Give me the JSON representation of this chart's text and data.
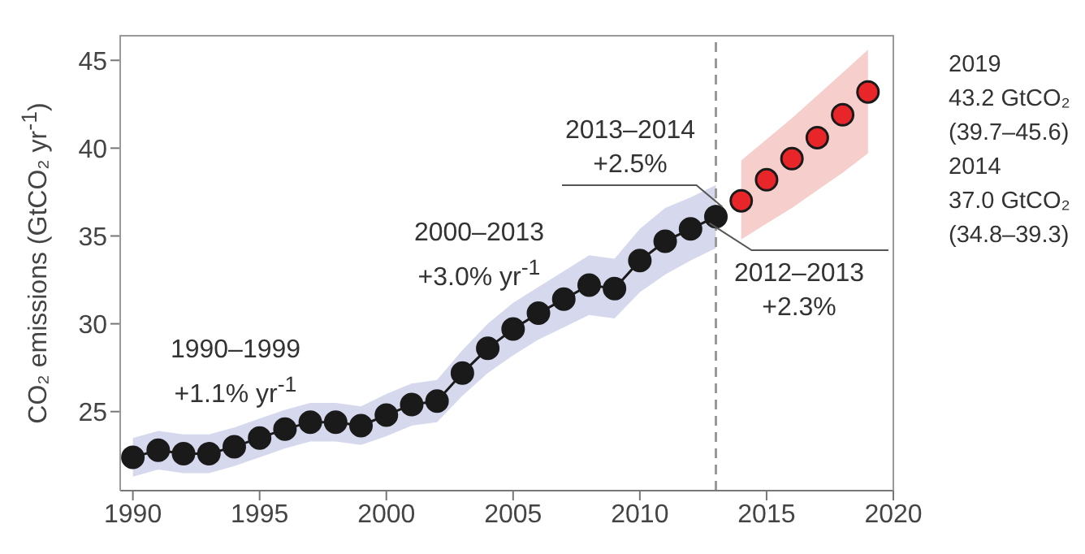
{
  "chart_data": {
    "type": "line",
    "ylabel": "CO₂ emissions (GtCO₂ yr$^{-1}$)",
    "xlim": [
      1989.5,
      2020
    ],
    "xticks": [
      1990,
      1995,
      2000,
      2005,
      2010,
      2015,
      2020
    ],
    "ylim": [
      20.5,
      46.4
    ],
    "yticks": [
      25,
      30,
      35,
      40,
      45
    ],
    "marker": "circle",
    "series": [
      {
        "color": "#1a1a1a",
        "x": [
          1990,
          1991,
          1992,
          1993,
          1994,
          1995,
          1996,
          1997,
          1998,
          1999,
          2000,
          2001,
          2002,
          2003,
          2004,
          2005,
          2006,
          2007,
          2008,
          2009,
          2010,
          2011,
          2012,
          2013
        ],
        "values": [
          22.4,
          22.8,
          22.6,
          22.6,
          23.0,
          23.5,
          24.0,
          24.4,
          24.4,
          24.2,
          24.8,
          25.4,
          25.6,
          27.2,
          28.6,
          29.7,
          30.6,
          31.4,
          32.2,
          32.0,
          33.6,
          34.7,
          35.4,
          36.1
        ],
        "lower": [
          21.3,
          21.7,
          21.5,
          21.5,
          21.9,
          22.4,
          22.9,
          23.3,
          23.3,
          23.1,
          23.6,
          24.2,
          24.4,
          25.9,
          27.2,
          28.2,
          29.1,
          29.8,
          30.5,
          30.3,
          31.8,
          32.8,
          33.6,
          34.3
        ],
        "upper": [
          23.5,
          23.9,
          23.7,
          23.7,
          24.1,
          24.6,
          25.1,
          25.5,
          25.5,
          25.3,
          26.0,
          26.6,
          26.8,
          28.5,
          30.0,
          31.2,
          32.1,
          33.0,
          33.9,
          33.7,
          35.4,
          36.6,
          37.2,
          37.9
        ]
      },
      {
        "type": "scatter",
        "color": "#e8262a",
        "x": [
          2014,
          2015,
          2016,
          2017,
          2018,
          2019
        ],
        "values": [
          37.0,
          38.2,
          39.4,
          40.6,
          41.9,
          43.2
        ],
        "lower": [
          34.8,
          35.7,
          36.6,
          37.6,
          38.6,
          39.7
        ],
        "upper": [
          39.3,
          40.5,
          41.7,
          43.0,
          44.3,
          45.6
        ]
      }
    ],
    "ref_lines": [
      {
        "axis": "x",
        "value": 2013,
        "label": null,
        "color": "#999999",
        "line_style": "dashed"
      }
    ],
    "annotations": [
      "1990–1999\n+1.1% yr$^{-1}$",
      "2000–2013\n+3.0% yr$^{-1}$",
      {
        "text": "2013–2014\n+2.5%",
        "x": 2013,
        "y": 36.1
      },
      {
        "text": "2012–2013\n+2.3%",
        "x": 2013,
        "y": 36.1
      },
      "2019\n43.2 GtCO₂\n(39.7–45.6)\n2014\n37.0 GtCO₂\n(34.8–39.3)"
    ]
  }
}
